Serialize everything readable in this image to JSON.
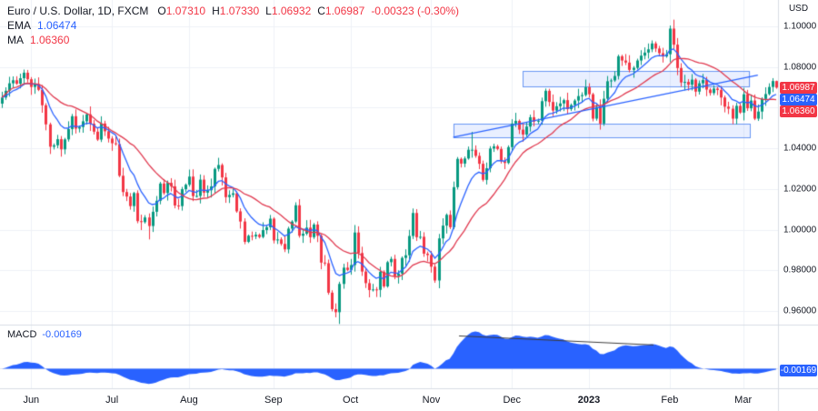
{
  "header": {
    "symbol": "Euro / U.S. Dollar, 1D, FXCM",
    "ohlc_items": [
      {
        "label": "O",
        "value": "1.07310"
      },
      {
        "label": "H",
        "value": "1.07330"
      },
      {
        "label": "L",
        "value": "1.06932"
      },
      {
        "label": "C",
        "value": "1.06987"
      }
    ],
    "change": "-0.00323 (-0.30%)",
    "ema": {
      "label": "EMA",
      "value": "1.06474"
    },
    "ma": {
      "label": "MA",
      "value": "1.06360"
    }
  },
  "macd": {
    "label": "MACD",
    "value": "-0.00169",
    "badge": "-0.00169",
    "color": "#2962ff"
  },
  "axes": {
    "currency_label": "USD",
    "price_ticks": [
      "1.10000",
      "1.08000",
      "1.06000",
      "1.04000",
      "1.02000",
      "1.00000",
      "0.98000",
      "0.96000"
    ],
    "time_ticks": [
      {
        "label": "Jun",
        "index": 8
      },
      {
        "label": "Jul",
        "index": 30
      },
      {
        "label": "Aug",
        "index": 51
      },
      {
        "label": "Sep",
        "index": 74
      },
      {
        "label": "Oct",
        "index": 95
      },
      {
        "label": "Nov",
        "index": 117
      },
      {
        "label": "Dec",
        "index": 139
      },
      {
        "label": "2023",
        "index": 160
      },
      {
        "label": "Feb",
        "index": 182
      },
      {
        "label": "Mar",
        "index": 202
      }
    ],
    "price_badges": [
      {
        "value": "1.06987",
        "color": "#f23645"
      },
      {
        "value": "1.06474",
        "color": "#2962ff"
      },
      {
        "value": "1.06360",
        "color": "#f23645"
      }
    ]
  },
  "colors": {
    "up": "#089981",
    "down": "#f23645",
    "grid": "#eef1f7",
    "axis_border": "#d8dce4",
    "zone_fill": "rgba(41,98,255,0.10)",
    "zone_border": "#6a97f2",
    "trendline": "#2962ff",
    "macd_fill": "#2962ff",
    "macd_trend": "#3c3c3c",
    "text": "#131722"
  },
  "chart_data": {
    "type": "candlestick",
    "title": "Euro / U.S. Dollar, 1D, FXCM",
    "price_range": [
      0.96,
      1.1
    ],
    "closes": [
      1.065,
      1.0683,
      1.072,
      1.0735,
      1.0718,
      1.0745,
      1.0772,
      1.074,
      1.0702,
      1.0716,
      1.0688,
      1.0612,
      1.0518,
      1.0408,
      1.0415,
      1.0445,
      1.0395,
      1.0444,
      1.0495,
      1.0558,
      1.0497,
      1.0505,
      1.0533,
      1.0567,
      1.0521,
      1.0482,
      1.0443,
      1.0522,
      1.0484,
      1.0448,
      1.0425,
      1.0421,
      1.0265,
      1.0185,
      1.0163,
      1.0116,
      1.018,
      1.0042,
      1.0037,
      1.006,
      1.0018,
      1.0088,
      1.0142,
      1.0227,
      1.018,
      1.023,
      1.0213,
      1.0119,
      1.0116,
      1.0199,
      1.0221,
      1.0261,
      1.0165,
      1.0166,
      1.0246,
      1.0182,
      1.0194,
      1.0213,
      1.0299,
      1.0318,
      1.0257,
      1.016,
      1.0171,
      1.0179,
      1.009,
      1.004,
      0.994,
      0.997,
      0.9967,
      0.9975,
      0.9964,
      0.9998,
      1.0012,
      1.0054,
      0.9947,
      0.9952,
      0.993,
      0.9903,
      1.0005,
      1.004,
      1.012,
      0.997,
      0.998,
      1.001,
      0.9963,
      1.0025,
      0.997,
      0.9838,
      0.9835,
      0.969,
      0.9609,
      0.9594,
      0.9733,
      0.9813,
      0.9802,
      0.9826,
      0.9986,
      0.9885,
      0.9794,
      0.9737,
      0.9703,
      0.9706,
      0.9704,
      0.9793,
      0.9721,
      0.984,
      0.9856,
      0.9772,
      0.9784,
      0.9861,
      0.9874,
      0.9969,
      1.0082,
      0.9963,
      0.9965,
      0.9882,
      0.9875,
      0.9818,
      0.975,
      0.9957,
      1.002,
      1.0073,
      1.0012,
      1.0209,
      1.0348,
      1.0325,
      1.035,
      1.0393,
      1.0393,
      1.0363,
      1.0324,
      1.0245,
      1.0302,
      1.0399,
      1.041,
      1.0397,
      1.0337,
      1.0328,
      1.0406,
      1.0522,
      1.0535,
      1.0492,
      1.0468,
      1.0507,
      1.0553,
      1.0531,
      1.0536,
      1.0632,
      1.0683,
      1.0628,
      1.0586,
      1.0607,
      1.0621,
      1.0637,
      1.0593,
      1.0613,
      1.0635,
      1.0657,
      1.0662,
      1.0701,
      1.0666,
      1.0546,
      1.0604,
      1.0522,
      1.0644,
      1.073,
      1.0734,
      1.0756,
      1.0853,
      1.0832,
      1.0822,
      1.0786,
      1.0796,
      1.0832,
      1.0856,
      1.0871,
      1.0887,
      1.0916,
      1.0891,
      1.0868,
      1.0852,
      1.0863,
      1.0989,
      1.091,
      1.0795,
      1.0724,
      1.0727,
      1.0713,
      1.0738,
      1.0679,
      1.072,
      1.0736,
      1.0689,
      1.0672,
      1.0694,
      1.0687,
      1.065,
      1.0605,
      1.0595,
      1.0546,
      1.0609,
      1.0576,
      1.0666,
      1.0597,
      1.0635,
      1.0546,
      1.0581,
      1.0643,
      1.0667,
      1.0702,
      1.0731,
      1.0699
    ],
    "last_bar": {
      "open": 1.0731,
      "high": 1.0733,
      "low": 1.06932,
      "close": 1.06987
    },
    "wick_overrides": {
      "16": {
        "low": 1.0359
      },
      "40": {
        "low": 0.9952
      },
      "92": {
        "low": 0.9536
      },
      "128": {
        "high": 1.0481
      },
      "183": {
        "high": 1.1033
      }
    },
    "indicators": {
      "ema": {
        "period": 9,
        "color": "#2962ff",
        "last": 1.06474
      },
      "sma": {
        "period": 20,
        "color": "#e0394f",
        "last": 1.0636
      },
      "macd": {
        "fast": 12,
        "slow": 26,
        "last": -0.00169
      }
    },
    "overlays": {
      "zones": [
        {
          "i0": 142,
          "i1": 204,
          "p0": 1.07,
          "p1": 1.078
        },
        {
          "i0": 123,
          "i1": 204,
          "p0": 1.045,
          "p1": 1.052
        }
      ],
      "trendline": {
        "i0": 123,
        "p0": 1.0455,
        "i1": 206,
        "p1": 1.076
      }
    },
    "macd_trendline": {
      "fx0": 0.59,
      "fy0": 0.12,
      "fx1": 0.84,
      "fy1": 0.28
    }
  }
}
